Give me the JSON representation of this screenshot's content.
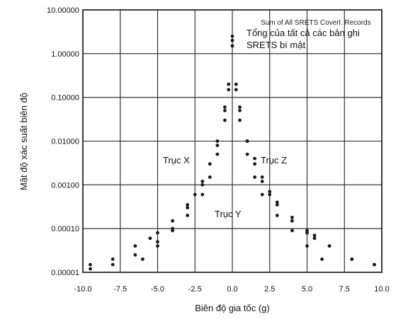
{
  "chart_data": {
    "type": "scatter",
    "title": "",
    "xlabel": "Biên độ gia tốc (g)",
    "ylabel": "Mật độ xác suất biên độ",
    "xlim": [
      -10.0,
      10.0
    ],
    "ylim": [
      1e-05,
      10.0
    ],
    "y_scale": "log",
    "grid": true,
    "x_ticks": [
      "-10.0",
      "-7.5",
      "-5.0",
      "-2.5",
      "0.0",
      "2.5",
      "5.0",
      "7.5",
      "10.0"
    ],
    "y_ticks": [
      "10.00000",
      "1.00000",
      "0.10000",
      "0.01000",
      "0.00100",
      "0.00010",
      "0.00001"
    ],
    "annotations": {
      "original_legend": "Sum of All SRETS Coverl. Records",
      "legend_vi_line1": "Tổng của tất cả các bản ghi",
      "legend_vi_line2": "SRETS bí mật",
      "axis_x": "Trục X",
      "axis_y": "Trục Y",
      "axis_z": "Trục Z"
    },
    "series": [
      {
        "name": "Trục X",
        "x": [
          -9.5,
          -8.0,
          -6.5,
          -5.5,
          -5.0,
          -4.0,
          -3.0,
          -2.5,
          -2.0,
          -1.5,
          -1.0,
          -0.5,
          -0.25,
          0.0,
          0.25,
          0.5,
          1.0,
          1.5,
          2.0,
          2.5,
          3.0,
          4.0,
          5.0,
          5.5,
          6.5,
          8.0,
          9.5
        ],
        "y": [
          1.5e-05,
          2e-05,
          4e-05,
          6e-05,
          8e-05,
          0.00015,
          0.00035,
          0.0006,
          0.0012,
          0.003,
          0.01,
          0.05,
          0.2,
          2.0,
          0.2,
          0.05,
          0.01,
          0.003,
          0.0012,
          0.0006,
          0.00035,
          0.00015,
          8e-05,
          6e-05,
          4e-05,
          2e-05,
          1.5e-05
        ]
      },
      {
        "name": "Trục Y",
        "x": [
          -6.0,
          -5.0,
          -4.0,
          -3.0,
          -2.0,
          -1.5,
          -1.0,
          -0.5,
          -0.25,
          0.0,
          0.25,
          0.5,
          1.0,
          1.5,
          2.0,
          3.0,
          4.0,
          5.0,
          6.0
        ],
        "y": [
          2e-05,
          4e-05,
          9e-05,
          0.0002,
          0.0006,
          0.0015,
          0.005,
          0.03,
          0.15,
          1.5,
          0.15,
          0.03,
          0.005,
          0.0015,
          0.0006,
          0.0002,
          9e-05,
          4e-05,
          2e-05
        ]
      },
      {
        "name": "Trục Z",
        "x": [
          -9.5,
          -8.0,
          -6.5,
          -5.0,
          -4.0,
          -3.0,
          -2.0,
          -1.0,
          -0.5,
          0.0,
          0.5,
          1.0,
          1.5,
          2.0,
          2.5,
          3.0,
          4.0,
          5.0,
          5.5,
          6.5,
          8.0,
          9.5
        ],
        "y": [
          1.2e-05,
          1.5e-05,
          2.5e-05,
          5e-05,
          0.0001,
          0.0003,
          0.001,
          0.008,
          0.06,
          2.5,
          0.06,
          0.01,
          0.004,
          0.0015,
          0.0007,
          0.0004,
          0.00018,
          9e-05,
          7e-05,
          4e-05,
          2e-05,
          1.5e-05
        ]
      }
    ]
  }
}
